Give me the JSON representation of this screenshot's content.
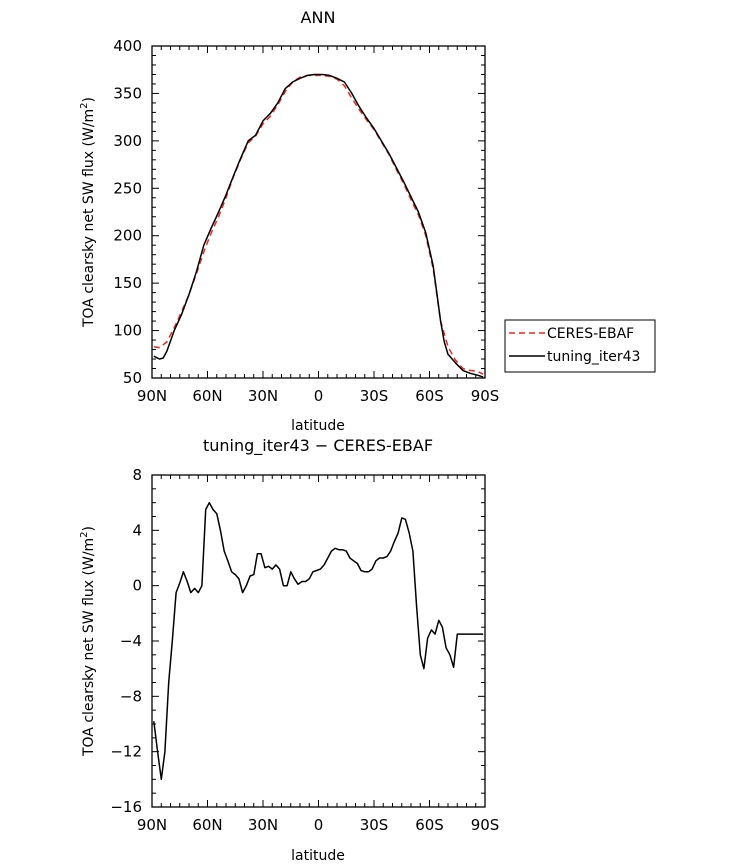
{
  "chart_data": [
    {
      "type": "line",
      "title": "ANN",
      "xlabel": "latitude",
      "ylabel": "TOA clearsky net SW flux (W/m²)",
      "ylabel_parts": {
        "main": "TOA clearsky net SW flux (W/m",
        "sup": "2",
        "close": ")"
      },
      "xlim": [
        90,
        -90
      ],
      "ylim": [
        50,
        400
      ],
      "xtick_values": [
        90,
        60,
        30,
        0,
        -30,
        -60,
        -90
      ],
      "xtick_labels": [
        "90N",
        "60N",
        "30N",
        "0",
        "30S",
        "60S",
        "90S"
      ],
      "ytick_values": [
        50,
        100,
        150,
        200,
        250,
        300,
        350,
        400
      ],
      "ytick_labels": [
        "50",
        "100",
        "150",
        "200",
        "250",
        "300",
        "350",
        "400"
      ],
      "legend": {
        "placement": "right",
        "entries": [
          "CERES-EBAF",
          "tuning_iter43"
        ]
      },
      "series": [
        {
          "name": "CERES-EBAF",
          "color": "#e8281e",
          "dash": "dashed",
          "x": [
            89,
            86,
            82,
            78,
            74,
            70,
            66,
            62,
            58,
            54,
            50,
            46,
            42,
            38,
            34,
            30,
            26,
            22,
            18,
            14,
            10,
            6,
            2,
            -2,
            -6,
            -10,
            -14,
            -18,
            -22,
            -26,
            -30,
            -34,
            -38,
            -42,
            -46,
            -50,
            -54,
            -58,
            -62,
            -66,
            -70,
            -74,
            -78,
            -82,
            -86,
            -89
          ],
          "y": [
            83,
            82,
            88,
            103,
            120,
            138,
            160,
            183,
            203,
            220,
            240,
            262,
            281,
            298,
            305,
            318,
            326,
            338,
            352,
            362,
            367,
            369,
            369,
            369,
            368,
            365,
            358,
            345,
            333,
            322,
            312,
            299,
            286,
            270,
            255,
            238,
            222,
            200,
            165,
            110,
            83,
            69,
            60,
            58,
            57,
            54
          ]
        },
        {
          "name": "tuning_iter43",
          "color": "#000000",
          "dash": "solid",
          "x": [
            89,
            86,
            84,
            82,
            78,
            74,
            70,
            66,
            62,
            58,
            54,
            50,
            46,
            42,
            38,
            34,
            30,
            26,
            22,
            18,
            14,
            10,
            6,
            2,
            -2,
            -6,
            -10,
            -14,
            -18,
            -22,
            -26,
            -30,
            -34,
            -38,
            -42,
            -46,
            -50,
            -54,
            -58,
            -62,
            -66,
            -68,
            -70,
            -74,
            -78,
            -82,
            -86,
            -89
          ],
          "y": [
            73,
            70,
            71,
            78,
            100,
            117,
            138,
            162,
            190,
            208,
            225,
            243,
            263,
            282,
            300,
            306,
            321,
            329,
            340,
            355,
            362,
            366,
            369,
            370,
            370,
            369,
            366,
            362,
            350,
            336,
            324,
            313,
            300,
            287,
            272,
            257,
            241,
            225,
            203,
            168,
            110,
            88,
            75,
            66,
            58,
            55,
            53,
            51
          ]
        }
      ]
    },
    {
      "type": "line",
      "title": "tuning_iter43 − CERES-EBAF",
      "xlabel": "latitude",
      "ylabel": "TOA clearsky net SW flux (W/m²)",
      "ylabel_parts": {
        "main": "TOA clearsky net SW flux (W/m",
        "sup": "2",
        "close": ")"
      },
      "xlim": [
        90,
        -90
      ],
      "ylim": [
        -16,
        8
      ],
      "xtick_values": [
        90,
        60,
        30,
        0,
        -30,
        -60,
        -90
      ],
      "xtick_labels": [
        "90N",
        "60N",
        "30N",
        "0",
        "30S",
        "60S",
        "90S"
      ],
      "ytick_values": [
        -16,
        -12,
        -8,
        -4,
        0,
        4,
        8
      ],
      "ytick_labels": [
        "−16",
        "−12",
        "−8",
        "−4",
        "0",
        "4",
        "8"
      ],
      "series": [
        {
          "color": "#000000",
          "dash": "solid",
          "x": [
            89,
            87,
            85,
            83,
            81,
            79,
            77,
            75,
            73,
            71,
            69,
            67,
            65,
            63,
            61,
            59,
            57,
            55,
            53,
            51,
            49,
            47,
            45,
            43,
            41,
            39,
            37,
            35,
            33,
            31,
            29,
            27,
            25,
            23,
            21,
            19,
            17,
            15,
            13,
            11,
            9,
            7,
            5,
            3,
            1,
            -1,
            -3,
            -5,
            -7,
            -9,
            -11,
            -13,
            -15,
            -17,
            -19,
            -21,
            -23,
            -25,
            -27,
            -29,
            -31,
            -33,
            -35,
            -37,
            -39,
            -41,
            -43,
            -45,
            -47,
            -49,
            -51,
            -53,
            -55,
            -57,
            -59,
            -61,
            -63,
            -65,
            -67,
            -69,
            -71,
            -73,
            -75,
            -77,
            -79,
            -81,
            -83,
            -85,
            -87,
            -89
          ],
          "y": [
            -9.8,
            -12,
            -14,
            -12,
            -7,
            -4,
            -0.5,
            0.2,
            1.0,
            0.3,
            -0.5,
            -0.2,
            -0.5,
            0,
            5.5,
            6.0,
            5.5,
            5.2,
            4.0,
            2.5,
            1.8,
            1.0,
            0.8,
            0.5,
            -0.5,
            0,
            0.7,
            0.8,
            2.3,
            2.3,
            1.3,
            1.4,
            1.2,
            1.5,
            1.2,
            0,
            0,
            1.0,
            0.5,
            0.1,
            0.3,
            0.3,
            0.5,
            1.0,
            1.1,
            1.2,
            1.5,
            2.0,
            2.5,
            2.7,
            2.6,
            2.6,
            2.5,
            2.0,
            1.8,
            1.6,
            1.1,
            1.0,
            1.0,
            1.2,
            1.8,
            2.0,
            2.0,
            2.1,
            2.5,
            3.2,
            3.8,
            4.9,
            4.8,
            3.8,
            2.5,
            -1.5,
            -5.0,
            -6.0,
            -3.8,
            -3.2,
            -3.5,
            -2.5,
            -3.0,
            -4.5,
            -5.0,
            -5.9,
            -3.5,
            -3.5,
            -3.5,
            -3.5,
            -3.5,
            -3.5,
            -3.5,
            -3.5
          ]
        }
      ]
    }
  ]
}
